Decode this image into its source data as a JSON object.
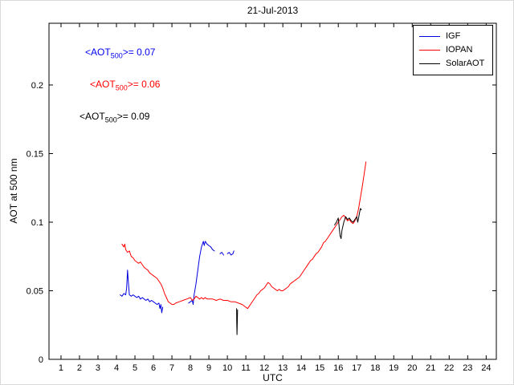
{
  "chart_data": {
    "type": "line",
    "title": "21-Jul-2013",
    "xlabel": "UTC",
    "ylabel": "AOT at 500 nm",
    "xlim": [
      0.35,
      24.55
    ],
    "ylim": [
      0,
      0.245
    ],
    "xticks": [
      1,
      2,
      3,
      4,
      5,
      6,
      7,
      8,
      9,
      10,
      11,
      12,
      13,
      14,
      15,
      16,
      17,
      18,
      19,
      20,
      21,
      22,
      23,
      24
    ],
    "ytick_values": [
      0,
      0.05,
      0.1,
      0.15,
      0.2
    ],
    "ytick_labels": [
      "0",
      "0.05",
      "0.1",
      "0.15",
      "0.2"
    ],
    "grid": false,
    "legend_position": "top-right",
    "annotations": [
      {
        "pre": "<AOT",
        "sub": "500",
        "post": ">= 0.07",
        "color": "#0000ee",
        "series": "IGF"
      },
      {
        "pre": "<AOT",
        "sub": "500",
        "post": ">= 0.06",
        "color": "#ff0000",
        "series": "IOPAN"
      },
      {
        "pre": "<AOT",
        "sub": "500",
        "post": ">= 0.09",
        "color": "#000000",
        "series": "SolarAOT"
      }
    ],
    "series": [
      {
        "name": "IGF",
        "color": "#0000dd",
        "segments": [
          [
            [
              4.2,
              0.047
            ],
            [
              4.3,
              0.046
            ],
            [
              4.4,
              0.048
            ],
            [
              4.5,
              0.047
            ],
            [
              4.55,
              0.052
            ],
            [
              4.6,
              0.065
            ],
            [
              4.65,
              0.055
            ],
            [
              4.7,
              0.047
            ],
            [
              4.8,
              0.046
            ],
            [
              4.9,
              0.047
            ],
            [
              5.0,
              0.046
            ],
            [
              5.1,
              0.045
            ],
            [
              5.2,
              0.046
            ],
            [
              5.3,
              0.044
            ],
            [
              5.4,
              0.045
            ],
            [
              5.5,
              0.044
            ],
            [
              5.6,
              0.043
            ],
            [
              5.7,
              0.044
            ],
            [
              5.8,
              0.042
            ],
            [
              5.9,
              0.043
            ],
            [
              6.0,
              0.042
            ],
            [
              6.1,
              0.041
            ],
            [
              6.2,
              0.04
            ],
            [
              6.3,
              0.041
            ],
            [
              6.35,
              0.037
            ],
            [
              6.4,
              0.04
            ],
            [
              6.45,
              0.034
            ],
            [
              6.5,
              0.038
            ]
          ],
          [
            [
              7.9,
              0.041
            ],
            [
              8.0,
              0.042
            ],
            [
              8.1,
              0.043
            ],
            [
              8.15,
              0.04
            ],
            [
              8.2,
              0.047
            ],
            [
              8.3,
              0.055
            ],
            [
              8.4,
              0.065
            ],
            [
              8.5,
              0.075
            ],
            [
              8.6,
              0.082
            ],
            [
              8.7,
              0.086
            ],
            [
              8.75,
              0.083
            ],
            [
              8.8,
              0.086
            ],
            [
              8.9,
              0.084
            ],
            [
              9.0,
              0.083
            ],
            [
              9.1,
              0.082
            ],
            [
              9.2,
              0.08
            ],
            [
              9.3,
              0.079
            ]
          ],
          [
            [
              9.6,
              0.077
            ],
            [
              9.7,
              0.078
            ],
            [
              9.8,
              0.076
            ]
          ],
          [
            [
              10.0,
              0.077
            ],
            [
              10.1,
              0.078
            ],
            [
              10.2,
              0.076
            ],
            [
              10.3,
              0.077
            ],
            [
              10.35,
              0.079
            ]
          ]
        ]
      },
      {
        "name": "IOPAN",
        "color": "#ff0000",
        "segments": [
          [
            [
              4.3,
              0.084
            ],
            [
              4.4,
              0.082
            ],
            [
              4.45,
              0.084
            ],
            [
              4.5,
              0.08
            ],
            [
              4.6,
              0.078
            ],
            [
              4.7,
              0.079
            ],
            [
              4.8,
              0.075
            ],
            [
              4.9,
              0.074
            ],
            [
              5.0,
              0.072
            ],
            [
              5.1,
              0.071
            ],
            [
              5.2,
              0.07
            ],
            [
              5.3,
              0.071
            ],
            [
              5.4,
              0.069
            ],
            [
              5.5,
              0.067
            ],
            [
              5.6,
              0.066
            ],
            [
              5.7,
              0.065
            ],
            [
              5.8,
              0.063
            ],
            [
              5.9,
              0.062
            ],
            [
              6.0,
              0.061
            ],
            [
              6.1,
              0.06
            ],
            [
              6.2,
              0.059
            ],
            [
              6.3,
              0.057
            ],
            [
              6.4,
              0.055
            ],
            [
              6.5,
              0.052
            ],
            [
              6.6,
              0.048
            ],
            [
              6.7,
              0.045
            ],
            [
              6.8,
              0.042
            ],
            [
              6.9,
              0.041
            ],
            [
              7.0,
              0.04
            ],
            [
              7.1,
              0.04
            ],
            [
              7.2,
              0.041
            ],
            [
              7.4,
              0.042
            ],
            [
              7.6,
              0.043
            ],
            [
              7.8,
              0.044
            ],
            [
              8.0,
              0.045
            ],
            [
              8.1,
              0.043
            ],
            [
              8.2,
              0.044
            ],
            [
              8.3,
              0.046
            ],
            [
              8.4,
              0.045
            ],
            [
              8.5,
              0.044
            ],
            [
              8.6,
              0.045
            ],
            [
              8.7,
              0.044
            ],
            [
              8.8,
              0.045
            ],
            [
              8.9,
              0.044
            ],
            [
              9.0,
              0.044
            ],
            [
              9.2,
              0.044
            ],
            [
              9.4,
              0.043
            ],
            [
              9.6,
              0.044
            ],
            [
              9.8,
              0.043
            ],
            [
              10.0,
              0.043
            ],
            [
              10.2,
              0.042
            ],
            [
              10.4,
              0.042
            ],
            [
              10.6,
              0.041
            ],
            [
              10.8,
              0.04
            ],
            [
              11.0,
              0.038
            ],
            [
              11.1,
              0.037
            ],
            [
              11.2,
              0.039
            ],
            [
              11.3,
              0.041
            ],
            [
              11.4,
              0.043
            ],
            [
              11.5,
              0.045
            ],
            [
              11.6,
              0.047
            ],
            [
              11.7,
              0.048
            ],
            [
              11.8,
              0.05
            ],
            [
              11.9,
              0.051
            ],
            [
              12.0,
              0.052
            ],
            [
              12.1,
              0.054
            ],
            [
              12.2,
              0.056
            ],
            [
              12.3,
              0.055
            ],
            [
              12.4,
              0.053
            ],
            [
              12.5,
              0.052
            ],
            [
              12.6,
              0.051
            ],
            [
              12.7,
              0.05
            ],
            [
              12.8,
              0.051
            ],
            [
              12.9,
              0.05
            ],
            [
              13.0,
              0.05
            ],
            [
              13.1,
              0.051
            ],
            [
              13.2,
              0.052
            ],
            [
              13.3,
              0.053
            ],
            [
              13.4,
              0.055
            ],
            [
              13.5,
              0.056
            ],
            [
              13.6,
              0.057
            ],
            [
              13.7,
              0.058
            ],
            [
              13.8,
              0.059
            ],
            [
              13.9,
              0.06
            ],
            [
              14.0,
              0.062
            ],
            [
              14.1,
              0.064
            ],
            [
              14.2,
              0.066
            ],
            [
              14.3,
              0.068
            ],
            [
              14.4,
              0.07
            ],
            [
              14.5,
              0.072
            ],
            [
              14.6,
              0.073
            ],
            [
              14.7,
              0.075
            ],
            [
              14.8,
              0.077
            ],
            [
              14.9,
              0.078
            ],
            [
              15.0,
              0.08
            ],
            [
              15.1,
              0.082
            ],
            [
              15.2,
              0.085
            ],
            [
              15.3,
              0.086
            ],
            [
              15.4,
              0.088
            ],
            [
              15.5,
              0.09
            ],
            [
              15.6,
              0.092
            ],
            [
              15.7,
              0.094
            ],
            [
              15.8,
              0.096
            ],
            [
              15.9,
              0.098
            ],
            [
              16.0,
              0.1
            ],
            [
              16.1,
              0.102
            ],
            [
              16.2,
              0.104
            ],
            [
              16.3,
              0.105
            ],
            [
              16.4,
              0.103
            ],
            [
              16.5,
              0.101
            ],
            [
              16.6,
              0.102
            ],
            [
              16.7,
              0.1
            ],
            [
              16.8,
              0.099
            ],
            [
              16.9,
              0.101
            ],
            [
              17.0,
              0.104
            ],
            [
              17.1,
              0.11
            ],
            [
              17.2,
              0.118
            ],
            [
              17.3,
              0.126
            ],
            [
              17.4,
              0.135
            ],
            [
              17.5,
              0.144
            ]
          ]
        ]
      },
      {
        "name": "SolarAOT",
        "color": "#000000",
        "segments": [
          [
            [
              10.5,
              0.037
            ],
            [
              10.51,
              0.026
            ],
            [
              10.52,
              0.018
            ],
            [
              10.54,
              0.028
            ],
            [
              10.55,
              0.036
            ]
          ],
          [
            [
              15.8,
              0.098
            ],
            [
              15.9,
              0.1
            ],
            [
              16.0,
              0.103
            ],
            [
              16.05,
              0.096
            ],
            [
              16.1,
              0.09
            ],
            [
              16.15,
              0.088
            ],
            [
              16.2,
              0.094
            ],
            [
              16.3,
              0.1
            ],
            [
              16.4,
              0.104
            ],
            [
              16.5,
              0.102
            ],
            [
              16.6,
              0.103
            ],
            [
              16.7,
              0.101
            ],
            [
              16.8,
              0.1
            ],
            [
              16.9,
              0.102
            ],
            [
              17.0,
              0.104
            ],
            [
              17.05,
              0.1
            ],
            [
              17.1,
              0.103
            ],
            [
              17.15,
              0.107
            ],
            [
              17.2,
              0.11
            ],
            [
              17.25,
              0.109
            ]
          ]
        ]
      }
    ]
  }
}
